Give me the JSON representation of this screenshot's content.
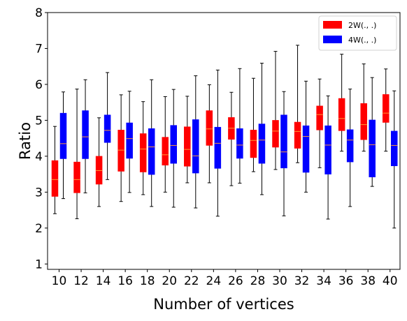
{
  "chart_data": {
    "type": "box",
    "xlabel": "Number of vertices",
    "ylabel": "Ratio",
    "ylim": [
      0.85,
      8.0
    ],
    "yticks": [
      1,
      2,
      3,
      4,
      5,
      6,
      7,
      8
    ],
    "categories": [
      "10",
      "12",
      "14",
      "16",
      "18",
      "20",
      "22",
      "24",
      "26",
      "28",
      "30",
      "32",
      "34",
      "36",
      "38",
      "40"
    ],
    "legend": {
      "position": "top-right"
    },
    "grid": false,
    "series": [
      {
        "name": "2W(., .)",
        "color": "#ff0000",
        "boxes": [
          {
            "min": 2.4,
            "q1": 2.88,
            "median": 3.35,
            "q3": 3.88,
            "max": 4.83
          },
          {
            "min": 2.26,
            "q1": 2.98,
            "median": 3.35,
            "q3": 3.84,
            "max": 5.87
          },
          {
            "min": 2.6,
            "q1": 3.22,
            "median": 3.6,
            "q3": 4.0,
            "max": 5.07
          },
          {
            "min": 2.74,
            "q1": 3.58,
            "median": 4.17,
            "q3": 4.73,
            "max": 5.71
          },
          {
            "min": 2.93,
            "q1": 3.56,
            "median": 4.2,
            "q3": 4.63,
            "max": 5.52
          },
          {
            "min": 3.0,
            "q1": 3.75,
            "median": 4.04,
            "q3": 4.53,
            "max": 5.66
          },
          {
            "min": 3.26,
            "q1": 3.72,
            "median": 4.19,
            "q3": 4.82,
            "max": 5.67
          },
          {
            "min": 3.26,
            "q1": 4.3,
            "median": 4.76,
            "q3": 5.27,
            "max": 5.99
          },
          {
            "min": 3.18,
            "q1": 4.47,
            "median": 4.78,
            "q3": 5.08,
            "max": 5.78
          },
          {
            "min": 3.57,
            "q1": 3.96,
            "median": 4.44,
            "q3": 4.73,
            "max": 6.17
          },
          {
            "min": 3.63,
            "q1": 4.25,
            "median": 4.7,
            "q3": 5.0,
            "max": 6.92
          },
          {
            "min": 3.82,
            "q1": 4.22,
            "median": 4.69,
            "q3": 4.95,
            "max": 7.09
          },
          {
            "min": 3.68,
            "q1": 4.73,
            "median": 5.16,
            "q3": 5.4,
            "max": 6.15
          },
          {
            "min": 4.14,
            "q1": 4.71,
            "median": 5.05,
            "q3": 5.61,
            "max": 6.84
          },
          {
            "min": 4.14,
            "q1": 4.46,
            "median": 4.88,
            "q3": 5.47,
            "max": 6.57
          },
          {
            "min": 4.14,
            "q1": 4.94,
            "median": 5.2,
            "q3": 5.72,
            "max": 6.43
          }
        ]
      },
      {
        "name": "4W(., .)",
        "color": "#0000ff",
        "boxes": [
          {
            "min": 2.82,
            "q1": 3.93,
            "median": 4.35,
            "q3": 5.2,
            "max": 5.79
          },
          {
            "min": 2.98,
            "q1": 3.93,
            "median": 4.54,
            "q3": 5.27,
            "max": 6.13
          },
          {
            "min": 3.35,
            "q1": 4.38,
            "median": 4.72,
            "q3": 5.15,
            "max": 6.33
          },
          {
            "min": 2.99,
            "q1": 3.94,
            "median": 4.49,
            "q3": 4.93,
            "max": 5.81
          },
          {
            "min": 2.6,
            "q1": 3.49,
            "median": 4.26,
            "q3": 4.77,
            "max": 6.13
          },
          {
            "min": 2.58,
            "q1": 3.8,
            "median": 4.3,
            "q3": 4.86,
            "max": 5.86
          },
          {
            "min": 2.56,
            "q1": 3.53,
            "median": 4.01,
            "q3": 5.02,
            "max": 6.24
          },
          {
            "min": 2.33,
            "q1": 3.66,
            "median": 4.36,
            "q3": 4.81,
            "max": 6.4
          },
          {
            "min": 3.25,
            "q1": 3.94,
            "median": 4.31,
            "q3": 4.77,
            "max": 6.44
          },
          {
            "min": 2.93,
            "q1": 3.8,
            "median": 4.45,
            "q3": 4.9,
            "max": 6.59
          },
          {
            "min": 2.34,
            "q1": 3.67,
            "median": 4.12,
            "q3": 5.15,
            "max": 5.8
          },
          {
            "min": 3.0,
            "q1": 3.55,
            "median": 4.55,
            "q3": 4.85,
            "max": 6.09
          },
          {
            "min": 2.25,
            "q1": 3.5,
            "median": 4.31,
            "q3": 4.85,
            "max": 5.68
          },
          {
            "min": 2.6,
            "q1": 3.84,
            "median": 4.45,
            "q3": 4.74,
            "max": 5.87
          },
          {
            "min": 3.16,
            "q1": 3.42,
            "median": 4.32,
            "q3": 5.01,
            "max": 6.19
          },
          {
            "min": 2.0,
            "q1": 3.73,
            "median": 4.3,
            "q3": 4.7,
            "max": 5.82
          }
        ]
      }
    ]
  }
}
